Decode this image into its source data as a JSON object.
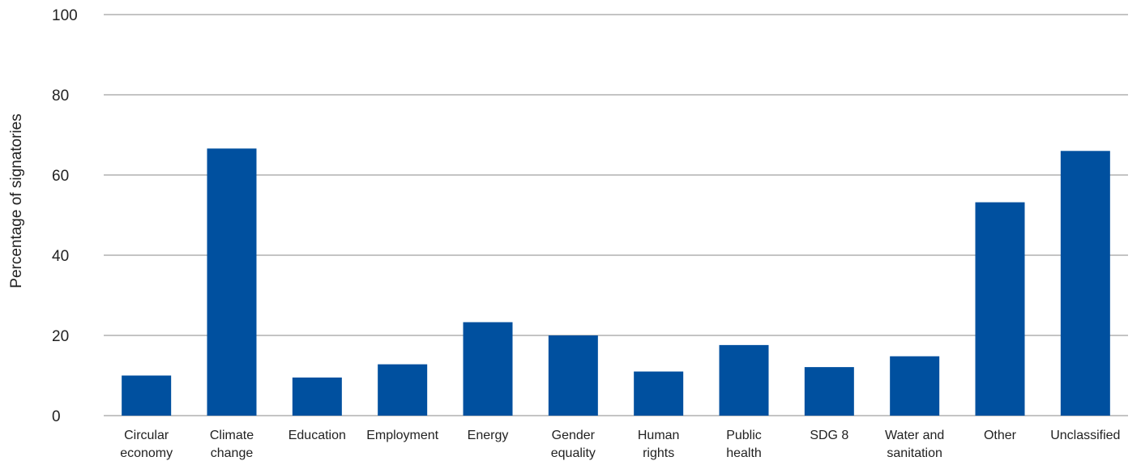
{
  "chart_data": {
    "type": "bar",
    "categories": [
      [
        "Circular",
        "economy"
      ],
      [
        "Climate",
        "change"
      ],
      [
        "Education"
      ],
      [
        "Employment"
      ],
      [
        "Energy"
      ],
      [
        "Gender",
        "equality"
      ],
      [
        "Human",
        "rights"
      ],
      [
        "Public",
        "health"
      ],
      [
        "SDG 8"
      ],
      [
        "Water and",
        "sanitation"
      ],
      [
        "Other"
      ],
      [
        "Unclassified"
      ]
    ],
    "values": [
      10,
      66.6,
      9.5,
      12.8,
      23.3,
      20,
      11,
      17.6,
      12.1,
      14.8,
      53.2,
      66
    ],
    "title": "",
    "xlabel": "",
    "ylabel": "Percentage of signatories",
    "ylim": [
      0,
      100
    ],
    "yticks": [
      "0",
      "20",
      "40",
      "60",
      "80",
      "100"
    ],
    "grid": true,
    "bar_color": "#00509f",
    "grid_color": "#8a8a8a"
  }
}
